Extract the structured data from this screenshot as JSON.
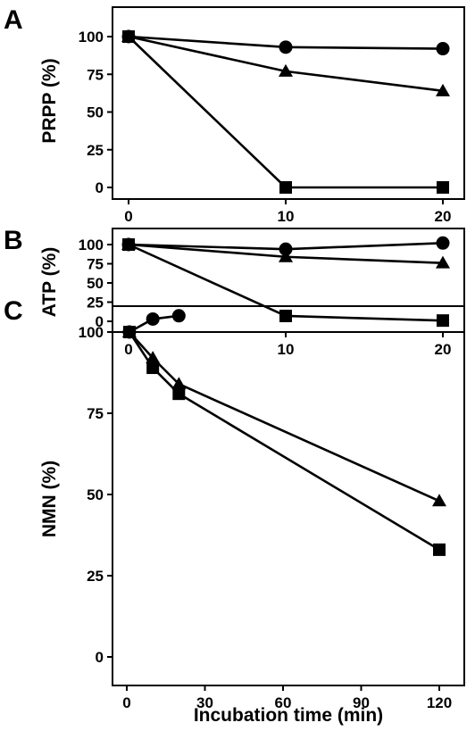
{
  "chart_data": [
    {
      "type": "line",
      "panel": "A",
      "ylabel": "PRPP (%)",
      "xlabel": "",
      "xlim": [
        0,
        22
      ],
      "ylim": [
        0,
        115
      ],
      "xticks": [
        "0",
        "10",
        "20"
      ],
      "yticks": [
        "0",
        "25",
        "50",
        "75",
        "100"
      ],
      "grid": false,
      "series": [
        {
          "marker": "circle",
          "x": [
            0,
            10,
            20
          ],
          "y": [
            100,
            93,
            92
          ]
        },
        {
          "marker": "triangle",
          "x": [
            0,
            10,
            20
          ],
          "y": [
            100,
            77,
            64
          ]
        },
        {
          "marker": "square",
          "x": [
            0,
            10,
            20
          ],
          "y": [
            100,
            0,
            0
          ]
        }
      ]
    },
    {
      "type": "line",
      "panel": "B",
      "ylabel": "ATP (%)",
      "xlabel": "",
      "xlim": [
        0,
        22
      ],
      "ylim": [
        0,
        115
      ],
      "xticks": [
        "0",
        "10",
        "20"
      ],
      "yticks": [
        "0",
        "25",
        "50",
        "75",
        "100"
      ],
      "grid": false,
      "series": [
        {
          "marker": "circle",
          "x": [
            0,
            10,
            20
          ],
          "y": [
            100,
            94,
            102
          ]
        },
        {
          "marker": "triangle",
          "x": [
            0,
            10,
            20
          ],
          "y": [
            100,
            84,
            76
          ]
        },
        {
          "marker": "square",
          "x": [
            0,
            10,
            20
          ],
          "y": [
            100,
            7,
            1
          ]
        }
      ]
    },
    {
      "type": "line",
      "panel": "C",
      "ylabel": "NMN (%)",
      "xlabel": "Incubation time (min)",
      "xlim": [
        0,
        130
      ],
      "ylim": [
        0,
        115
      ],
      "xticks": [
        "0",
        "30",
        "60",
        "90",
        "120"
      ],
      "yticks": [
        "0",
        "25",
        "50",
        "75",
        "100"
      ],
      "grid": false,
      "series": [
        {
          "marker": "circle",
          "x": [
            1,
            10,
            20
          ],
          "y": [
            100,
            104,
            105
          ]
        },
        {
          "marker": "triangle",
          "x": [
            1,
            10,
            20,
            120
          ],
          "y": [
            100,
            92,
            84,
            48
          ]
        },
        {
          "marker": "square",
          "x": [
            1,
            10,
            20,
            120
          ],
          "y": [
            100,
            89,
            81,
            33
          ]
        }
      ]
    }
  ]
}
